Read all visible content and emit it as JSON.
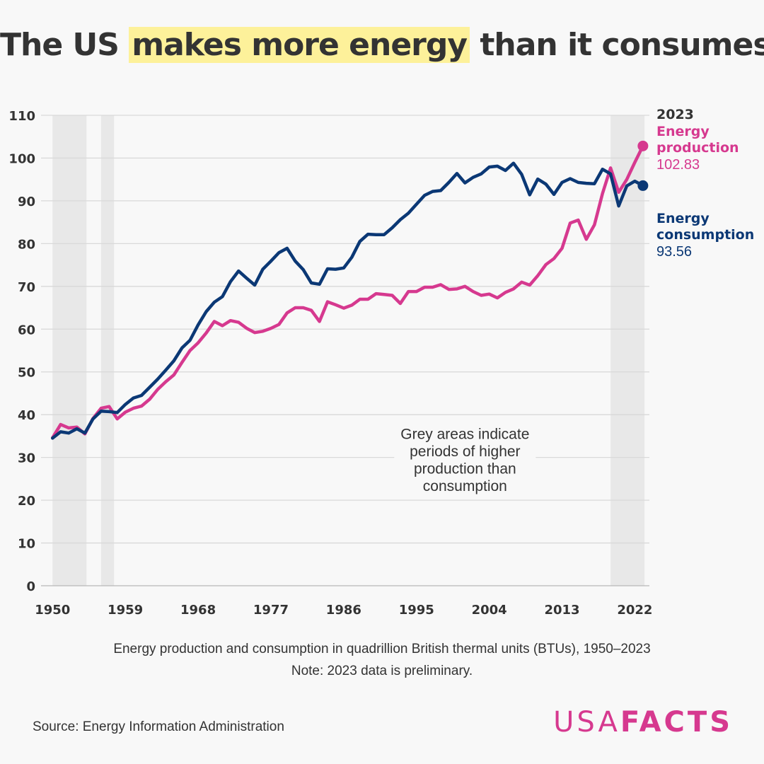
{
  "title": {
    "before": "The US",
    "highlight": "makes more energy",
    "after": "than it consumes"
  },
  "colors": {
    "production": "#d6398f",
    "consumption": "#0b3875",
    "highlight": "#fdf19a",
    "shade": "#e8e8e8",
    "grid": "#d9d9d9",
    "text": "#333333"
  },
  "chart_data": {
    "type": "line",
    "title": "The US makes more energy than it consumes",
    "xlabel": "",
    "ylabel": "",
    "xlim": [
      1950,
      2023
    ],
    "ylim": [
      0,
      110
    ],
    "yticks": [
      0,
      10,
      20,
      30,
      40,
      50,
      60,
      70,
      80,
      90,
      100,
      110
    ],
    "xticks": [
      1950,
      1959,
      1968,
      1977,
      1986,
      1995,
      2004,
      2013,
      2022
    ],
    "x": [
      1950,
      1951,
      1952,
      1953,
      1954,
      1955,
      1956,
      1957,
      1958,
      1959,
      1960,
      1961,
      1962,
      1963,
      1964,
      1965,
      1966,
      1967,
      1968,
      1969,
      1970,
      1971,
      1972,
      1973,
      1974,
      1975,
      1976,
      1977,
      1978,
      1979,
      1980,
      1981,
      1982,
      1983,
      1984,
      1985,
      1986,
      1987,
      1988,
      1989,
      1990,
      1991,
      1992,
      1993,
      1994,
      1995,
      1996,
      1997,
      1998,
      1999,
      2000,
      2001,
      2002,
      2003,
      2004,
      2005,
      2006,
      2007,
      2008,
      2009,
      2010,
      2011,
      2012,
      2013,
      2014,
      2015,
      2016,
      2017,
      2018,
      2019,
      2020,
      2021,
      2022,
      2023
    ],
    "shaded_periods": [
      [
        1950,
        1954.2
      ],
      [
        1956,
        1957.6
      ],
      [
        2019,
        2023.2
      ]
    ],
    "series": [
      {
        "name": "Energy production",
        "label_year": "2023",
        "label_line1": "Energy",
        "label_line2": "production",
        "final_value_label": "102.83",
        "values": [
          34.6,
          37.7,
          36.9,
          37.1,
          35.5,
          39.1,
          41.5,
          41.9,
          39.0,
          40.6,
          41.5,
          42.0,
          43.6,
          45.9,
          47.7,
          49.3,
          52.2,
          55.0,
          56.8,
          59.1,
          61.8,
          60.8,
          62.0,
          61.6,
          60.2,
          59.2,
          59.5,
          60.2,
          61.1,
          63.8,
          65.0,
          65.0,
          64.4,
          61.8,
          66.4,
          65.7,
          64.9,
          65.6,
          67.0,
          67.0,
          68.3,
          68.1,
          67.9,
          66.0,
          68.8,
          68.8,
          69.8,
          69.8,
          70.4,
          69.3,
          69.4,
          70.0,
          68.8,
          67.9,
          68.2,
          67.3,
          68.6,
          69.4,
          71.0,
          70.3,
          72.5,
          75.1,
          76.5,
          78.9,
          84.8,
          85.5,
          81.0,
          84.4,
          91.7,
          97.7,
          92.0,
          95.0,
          99.0,
          102.83
        ]
      },
      {
        "name": "Energy consumption",
        "label_line1": "Energy",
        "label_line2": "consumption",
        "final_value_label": "93.56",
        "values": [
          34.5,
          36.0,
          35.7,
          36.7,
          35.7,
          39.0,
          40.8,
          40.7,
          40.5,
          42.4,
          43.9,
          44.5,
          46.4,
          48.3,
          50.4,
          52.6,
          55.6,
          57.4,
          61.0,
          64.1,
          66.3,
          67.6,
          71.1,
          73.6,
          71.9,
          70.3,
          74.0,
          75.9,
          77.9,
          78.9,
          75.9,
          73.9,
          70.8,
          70.5,
          74.1,
          74.0,
          74.3,
          76.8,
          80.5,
          82.2,
          82.1,
          82.1,
          83.7,
          85.6,
          87.1,
          89.2,
          91.3,
          92.2,
          92.4,
          94.3,
          96.4,
          94.2,
          95.5,
          96.3,
          97.9,
          98.1,
          97.1,
          98.8,
          96.2,
          91.4,
          95.1,
          93.9,
          91.5,
          94.3,
          95.2,
          94.3,
          94.1,
          94.0,
          97.4,
          96.3,
          88.8,
          93.5,
          94.6,
          93.56
        ]
      }
    ],
    "annotation": {
      "line1": "Grey areas indicate",
      "line2": "periods of higher",
      "line3": "production than",
      "line4": "consumption",
      "x": 2001,
      "y": 36.5
    },
    "subtitle": "Energy production and consumption in quadrillion British thermal units (BTUs), 1950–2023",
    "note": "Note: 2023 data is preliminary."
  },
  "footer": {
    "source": "Source: Energy Information Administration",
    "logo_part1": "USA",
    "logo_part2": "FACTS"
  }
}
